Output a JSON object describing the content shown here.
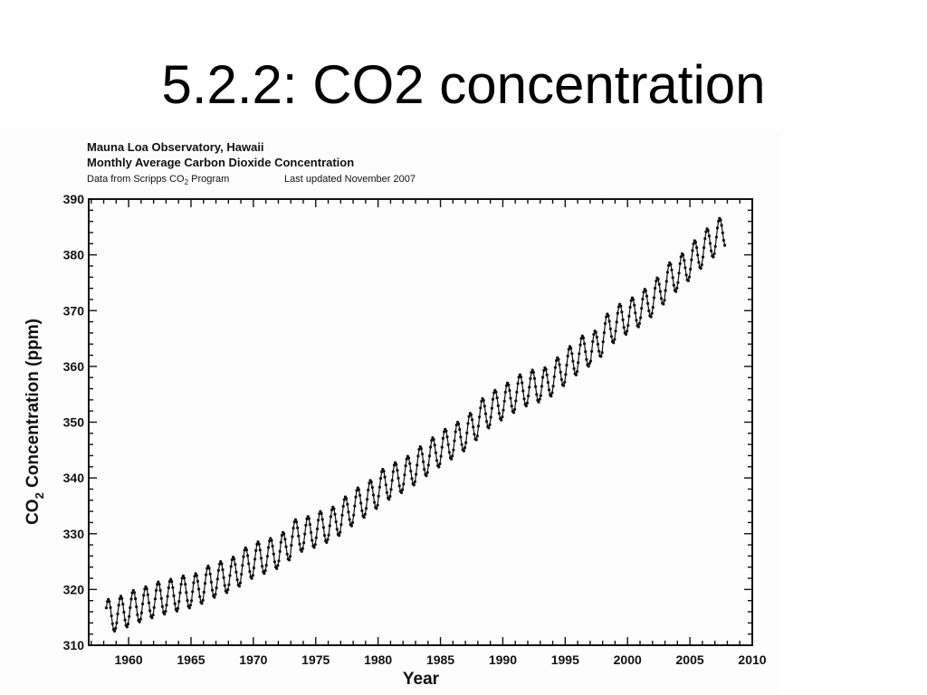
{
  "slide": {
    "title": "5.2.2: CO2 concentration"
  },
  "chart_data": {
    "type": "line",
    "header_line1": "Mauna Loa Observatory, Hawaii",
    "header_line2": "Monthly Average Carbon Dioxide Concentration",
    "source_prefix": "Data from Scripps CO",
    "source_subscript": "2",
    "source_suffix": " Program",
    "last_updated": "Last updated November 2007",
    "xlabel": "Year",
    "ylabel_prefix": "CO",
    "ylabel_subscript": "2",
    "ylabel_suffix": " Concentration (ppm)",
    "xlim": [
      1956.8,
      2010
    ],
    "ylim": [
      310,
      390
    ],
    "x_ticks": [
      1960,
      1965,
      1970,
      1975,
      1980,
      1985,
      1990,
      1995,
      2000,
      2005,
      2010
    ],
    "y_ticks": [
      310,
      320,
      330,
      340,
      350,
      360,
      370,
      380,
      390
    ],
    "grid": false,
    "series": [
      {
        "marker": "dot",
        "color": "#111111",
        "annual_means": {
          "years": [
            1958,
            1959,
            1960,
            1961,
            1962,
            1963,
            1964,
            1965,
            1966,
            1967,
            1968,
            1969,
            1970,
            1971,
            1972,
            1973,
            1974,
            1975,
            1976,
            1977,
            1978,
            1979,
            1980,
            1981,
            1982,
            1983,
            1984,
            1985,
            1986,
            1987,
            1988,
            1989,
            1990,
            1991,
            1992,
            1993,
            1994,
            1995,
            1996,
            1997,
            1998,
            1999,
            2000,
            2001,
            2002,
            2003,
            2004,
            2005,
            2006,
            2007
          ],
          "values": [
            315.3,
            315.9,
            316.9,
            317.6,
            318.4,
            318.9,
            319.5,
            320.0,
            321.3,
            322.1,
            323.0,
            324.6,
            325.6,
            326.3,
            327.5,
            329.6,
            330.2,
            331.1,
            332.0,
            333.8,
            335.4,
            336.8,
            338.7,
            339.9,
            341.1,
            342.8,
            344.4,
            345.9,
            347.2,
            348.9,
            351.4,
            352.9,
            354.2,
            355.6,
            356.4,
            357.0,
            358.8,
            360.8,
            362.6,
            363.7,
            366.6,
            368.3,
            369.5,
            371.1,
            373.2,
            375.8,
            377.5,
            379.8,
            381.9,
            383.8
          ]
        },
        "seasonal_amplitude_ppm": 6.0
      }
    ]
  }
}
